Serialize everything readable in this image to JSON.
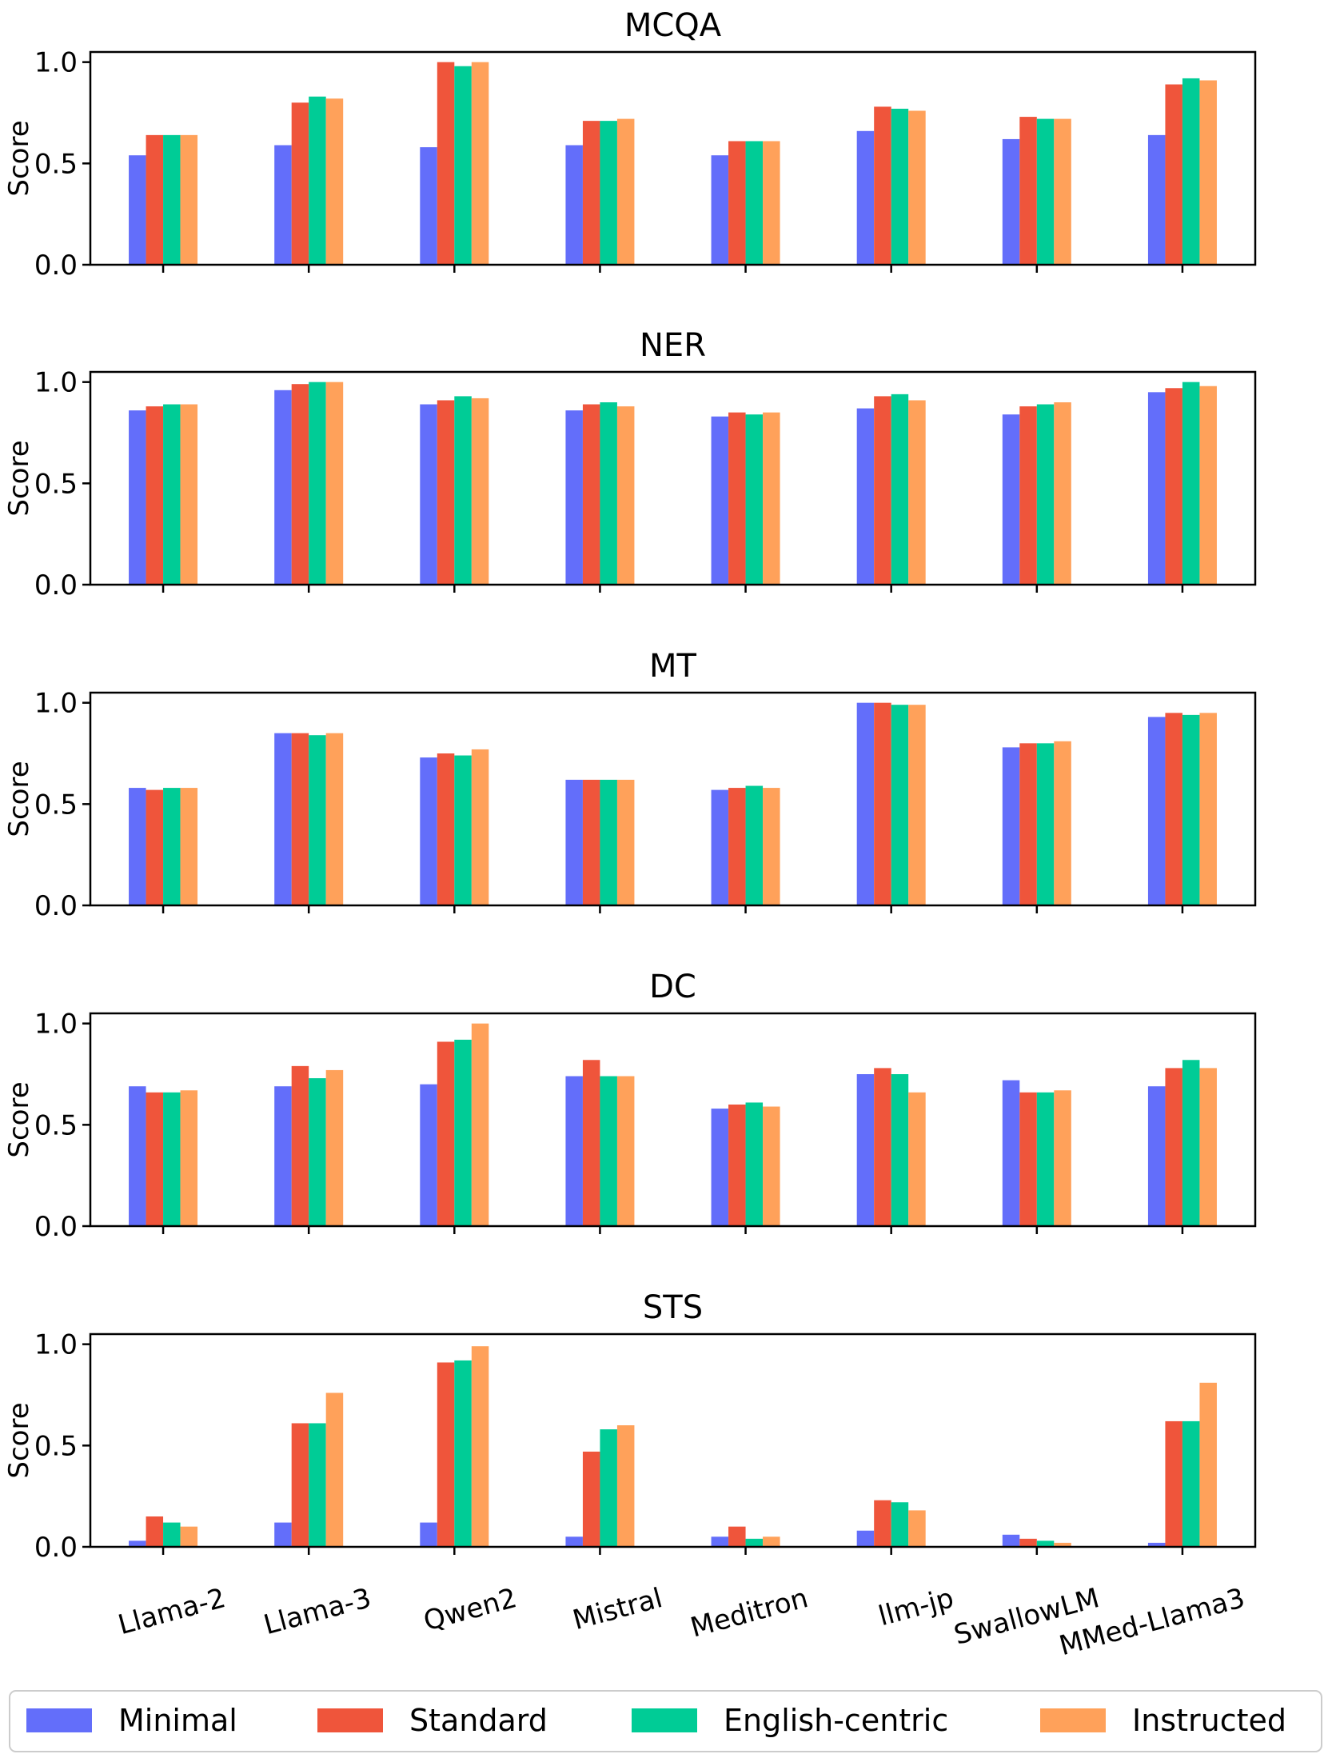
{
  "chart_data": {
    "type": "bar",
    "categories": [
      "Llama-2",
      "Llama-3",
      "Qwen2",
      "Mistral",
      "Meditron",
      "llm-jp",
      "SwallowLM",
      "MMed-Llama3"
    ],
    "series_names": [
      "Minimal",
      "Standard",
      "English-centric",
      "Instructed"
    ],
    "colors": {
      "Minimal": "#636efa",
      "Standard": "#ef553b",
      "English-centric": "#00cc96",
      "Instructed": "#ffa15a"
    },
    "ylabel": "Score",
    "ylim": [
      0,
      1.05
    ],
    "yticks": [
      "0.0",
      "0.5",
      "1.0"
    ],
    "ytick_values": [
      0,
      0.5,
      1.0
    ],
    "legend_position": "bottom",
    "panels": [
      {
        "title": "MCQA",
        "series": [
          {
            "name": "Minimal",
            "values": [
              0.54,
              0.59,
              0.58,
              0.59,
              0.54,
              0.66,
              0.62,
              0.64
            ]
          },
          {
            "name": "Standard",
            "values": [
              0.64,
              0.8,
              1.0,
              0.71,
              0.61,
              0.78,
              0.73,
              0.89
            ]
          },
          {
            "name": "English-centric",
            "values": [
              0.64,
              0.83,
              0.98,
              0.71,
              0.61,
              0.77,
              0.72,
              0.92
            ]
          },
          {
            "name": "Instructed",
            "values": [
              0.64,
              0.82,
              1.0,
              0.72,
              0.61,
              0.76,
              0.72,
              0.91
            ]
          }
        ]
      },
      {
        "title": "NER",
        "series": [
          {
            "name": "Minimal",
            "values": [
              0.86,
              0.96,
              0.89,
              0.86,
              0.83,
              0.87,
              0.84,
              0.95
            ]
          },
          {
            "name": "Standard",
            "values": [
              0.88,
              0.99,
              0.91,
              0.89,
              0.85,
              0.93,
              0.88,
              0.97
            ]
          },
          {
            "name": "English-centric",
            "values": [
              0.89,
              1.0,
              0.93,
              0.9,
              0.84,
              0.94,
              0.89,
              1.0
            ]
          },
          {
            "name": "Instructed",
            "values": [
              0.89,
              1.0,
              0.92,
              0.88,
              0.85,
              0.91,
              0.9,
              0.98
            ]
          }
        ]
      },
      {
        "title": "MT",
        "series": [
          {
            "name": "Minimal",
            "values": [
              0.58,
              0.85,
              0.73,
              0.62,
              0.57,
              1.0,
              0.78,
              0.93
            ]
          },
          {
            "name": "Standard",
            "values": [
              0.57,
              0.85,
              0.75,
              0.62,
              0.58,
              1.0,
              0.8,
              0.95
            ]
          },
          {
            "name": "English-centric",
            "values": [
              0.58,
              0.84,
              0.74,
              0.62,
              0.59,
              0.99,
              0.8,
              0.94
            ]
          },
          {
            "name": "Instructed",
            "values": [
              0.58,
              0.85,
              0.77,
              0.62,
              0.58,
              0.99,
              0.81,
              0.95
            ]
          }
        ]
      },
      {
        "title": "DC",
        "series": [
          {
            "name": "Minimal",
            "values": [
              0.69,
              0.69,
              0.7,
              0.74,
              0.58,
              0.75,
              0.72,
              0.69
            ]
          },
          {
            "name": "Standard",
            "values": [
              0.66,
              0.79,
              0.91,
              0.82,
              0.6,
              0.78,
              0.66,
              0.78
            ]
          },
          {
            "name": "English-centric",
            "values": [
              0.66,
              0.73,
              0.92,
              0.74,
              0.61,
              0.75,
              0.66,
              0.82
            ]
          },
          {
            "name": "Instructed",
            "values": [
              0.67,
              0.77,
              1.0,
              0.74,
              0.59,
              0.66,
              0.67,
              0.78
            ]
          }
        ]
      },
      {
        "title": "STS",
        "series": [
          {
            "name": "Minimal",
            "values": [
              0.03,
              0.12,
              0.12,
              0.05,
              0.05,
              0.08,
              0.06,
              0.02
            ]
          },
          {
            "name": "Standard",
            "values": [
              0.15,
              0.61,
              0.91,
              0.47,
              0.1,
              0.23,
              0.04,
              0.62
            ]
          },
          {
            "name": "English-centric",
            "values": [
              0.12,
              0.61,
              0.92,
              0.58,
              0.04,
              0.22,
              0.03,
              0.62
            ]
          },
          {
            "name": "Instructed",
            "values": [
              0.1,
              0.76,
              0.99,
              0.6,
              0.05,
              0.18,
              0.02,
              0.81
            ]
          }
        ]
      }
    ]
  }
}
